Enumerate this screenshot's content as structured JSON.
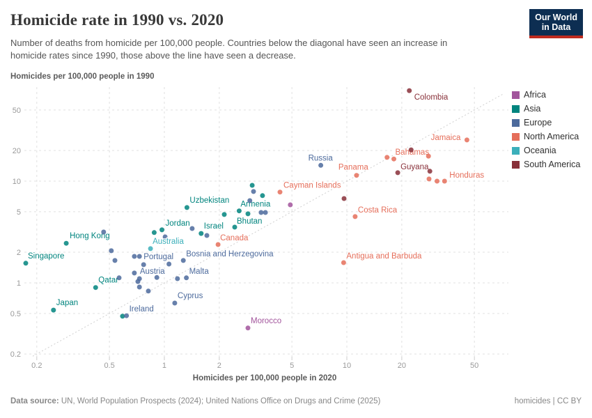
{
  "header": {
    "title": "Homicide rate in 1990 vs. 2020",
    "subtitle_line1": "Number of deaths from homicide per 100,000 people. Countries below the diagonal have seen an increase in",
    "subtitle_line2": "homicide rates since 1990, those above the line have seen a decrease.",
    "logo_line1": "Our World",
    "logo_line2": "in Data"
  },
  "legend": {
    "items": [
      {
        "label": "Africa",
        "color": "#a2559c"
      },
      {
        "label": "Asia",
        "color": "#00847e"
      },
      {
        "label": "Europe",
        "color": "#4c6a9c"
      },
      {
        "label": "North America",
        "color": "#e56e5a"
      },
      {
        "label": "Oceania",
        "color": "#3bafba"
      },
      {
        "label": "South America",
        "color": "#883039"
      }
    ]
  },
  "footer": {
    "source_label": "Data source:",
    "source_text": " UN, World Population Prospects (2024); United Nations Office on Drugs and Crime (2025)",
    "attribution": "homicides | CC BY"
  },
  "chart_data": {
    "type": "scatter",
    "title": "Homicide rate in 1990 vs. 2020",
    "xlabel": "Homicides per 100,000 people in 2020",
    "ylabel": "Homicides per 100,000 people in 1990",
    "x_scale": "log",
    "y_scale": "log",
    "x_ticks": [
      0.2,
      0.5,
      1,
      2,
      5,
      10,
      20,
      50
    ],
    "y_ticks": [
      0.2,
      0.5,
      1,
      2,
      5,
      10,
      20,
      50
    ],
    "x_domain": [
      0.171,
      76.8
    ],
    "y_domain": [
      0.188,
      84
    ],
    "grid": true,
    "legend_position": "right",
    "diagonal": {
      "from": 0.19,
      "to": 72
    },
    "series": [
      {
        "name": "Africa",
        "color": "#a2559c",
        "points": [
          {
            "x": 2.87,
            "y": 0.36,
            "label": "Morocco",
            "dx": 4,
            "dy": -7
          },
          {
            "x": 4.9,
            "y": 5.85
          }
        ]
      },
      {
        "name": "Asia",
        "color": "#00847e",
        "points": [
          {
            "x": 0.174,
            "y": 1.56,
            "label": "Singapore",
            "dx": 3,
            "dy": -7
          },
          {
            "x": 0.29,
            "y": 2.45,
            "label": "Hong Kong",
            "dx": 5,
            "dy": -7
          },
          {
            "x": 0.247,
            "y": 0.54,
            "label": "Japan",
            "dx": 4,
            "dy": -7
          },
          {
            "x": 0.42,
            "y": 0.9,
            "label": "Qatar",
            "dx": 4,
            "dy": -7
          },
          {
            "x": 0.97,
            "y": 3.32,
            "label": "Jordan",
            "dx": 5,
            "dy": -6
          },
          {
            "x": 1.59,
            "y": 3.06,
            "label": "Israel",
            "dx": 4,
            "dy": -7
          },
          {
            "x": 1.33,
            "y": 5.5,
            "label": "Uzbekistan",
            "dx": 4,
            "dy": -7
          },
          {
            "x": 2.57,
            "y": 5.1,
            "label": "Armenia",
            "dx": 2,
            "dy": -6
          },
          {
            "x": 2.43,
            "y": 3.53,
            "label": "Bhutan",
            "dx": 3,
            "dy": -5
          },
          {
            "x": 3.03,
            "y": 9.1
          },
          {
            "x": 3.45,
            "y": 7.2
          },
          {
            "x": 2.87,
            "y": 4.77
          },
          {
            "x": 2.13,
            "y": 4.7
          },
          {
            "x": 0.88,
            "y": 3.12
          },
          {
            "x": 0.59,
            "y": 0.47
          }
        ]
      },
      {
        "name": "Europe",
        "color": "#4c6a9c",
        "points": [
          {
            "x": 7.2,
            "y": 14.3,
            "label": "Russia",
            "dx": -18,
            "dy": -7
          },
          {
            "x": 0.62,
            "y": 0.475,
            "label": "Ireland",
            "dx": 4,
            "dy": -6
          },
          {
            "x": 1.27,
            "y": 1.66,
            "label": "Bosnia and Herzegovina",
            "dx": 4,
            "dy": -6
          },
          {
            "x": 1.32,
            "y": 1.12,
            "label": "Malta",
            "dx": 4,
            "dy": -6
          },
          {
            "x": 1.14,
            "y": 0.633,
            "label": "Cyprus",
            "dx": 4,
            "dy": -7
          },
          {
            "x": 0.73,
            "y": 1.82,
            "label": "Portugal",
            "dx": 6,
            "dy": 4
          },
          {
            "x": 0.685,
            "y": 1.25,
            "label": "Austria",
            "dx": 8,
            "dy": 1
          },
          {
            "x": 3.08,
            "y": 7.9
          },
          {
            "x": 2.94,
            "y": 6.43
          },
          {
            "x": 3.39,
            "y": 4.92
          },
          {
            "x": 3.58,
            "y": 4.92
          },
          {
            "x": 1.42,
            "y": 3.42
          },
          {
            "x": 1.71,
            "y": 2.92
          },
          {
            "x": 1.01,
            "y": 2.83
          },
          {
            "x": 0.465,
            "y": 3.16
          },
          {
            "x": 0.512,
            "y": 2.07
          },
          {
            "x": 0.536,
            "y": 1.66
          },
          {
            "x": 0.565,
            "y": 1.12
          },
          {
            "x": 0.685,
            "y": 1.82
          },
          {
            "x": 0.77,
            "y": 1.51
          },
          {
            "x": 1.06,
            "y": 1.53
          },
          {
            "x": 0.91,
            "y": 1.13
          },
          {
            "x": 0.716,
            "y": 1.03
          },
          {
            "x": 0.73,
            "y": 0.91
          },
          {
            "x": 0.817,
            "y": 0.83
          },
          {
            "x": 1.18,
            "y": 1.1
          },
          {
            "x": 0.73,
            "y": 1.1
          }
        ]
      },
      {
        "name": "North America",
        "color": "#e56e5a",
        "points": [
          {
            "x": 45.5,
            "y": 25.4,
            "label": "Jamaica",
            "anchor": "end",
            "dx": -9,
            "dy": 0
          },
          {
            "x": 18.1,
            "y": 16.5,
            "label": "Bahamas",
            "dx": 2,
            "dy": -6
          },
          {
            "x": 11.3,
            "y": 11.4,
            "label": "Panama",
            "dx": -26,
            "dy": -8
          },
          {
            "x": 34.3,
            "y": 10.0,
            "label": "Honduras",
            "dx": 7,
            "dy": -5
          },
          {
            "x": 4.3,
            "y": 7.8,
            "label": "Cayman Islands",
            "dx": 5,
            "dy": -6
          },
          {
            "x": 11.1,
            "y": 4.48,
            "label": "Costa Rica",
            "dx": 4,
            "dy": -6
          },
          {
            "x": 9.6,
            "y": 1.58,
            "label": "Antigua and Barbuda",
            "dx": 4,
            "dy": -6
          },
          {
            "x": 1.97,
            "y": 2.38,
            "label": "Canada",
            "dx": 3,
            "dy": -6
          },
          {
            "x": 16.6,
            "y": 17.1
          },
          {
            "x": 28.2,
            "y": 10.5
          },
          {
            "x": 31.2,
            "y": 10.0
          },
          {
            "x": 28.0,
            "y": 17.6
          }
        ]
      },
      {
        "name": "Oceania",
        "color": "#3bafba",
        "points": [
          {
            "x": 0.84,
            "y": 2.17,
            "label": "Australia",
            "dx": 3,
            "dy": -7
          }
        ]
      },
      {
        "name": "South America",
        "color": "#883039",
        "points": [
          {
            "x": 22.0,
            "y": 77.5,
            "label": "Colombia",
            "dx": 7,
            "dy": 13
          },
          {
            "x": 19.0,
            "y": 12.1,
            "label": "Guyana",
            "dx": 4,
            "dy": -5
          },
          {
            "x": 22.5,
            "y": 20.3
          },
          {
            "x": 28.5,
            "y": 12.5
          },
          {
            "x": 9.65,
            "y": 6.74
          }
        ]
      }
    ]
  }
}
